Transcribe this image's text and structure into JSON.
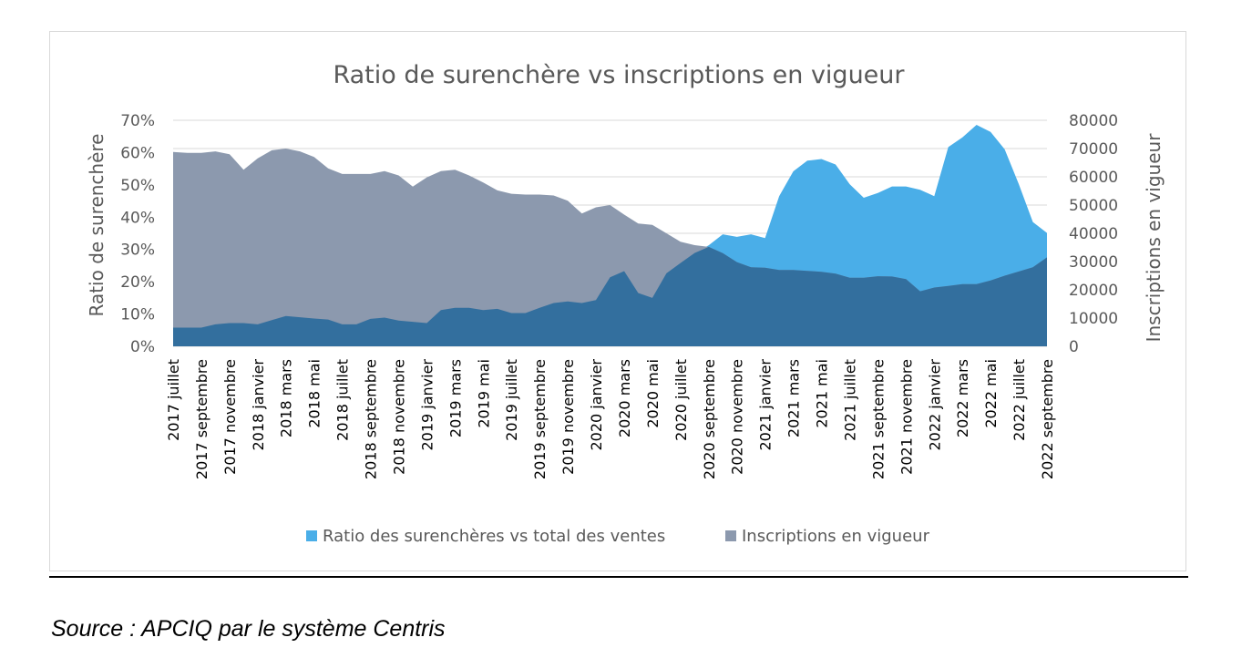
{
  "chart_data": {
    "type": "area",
    "title": "Ratio de surenchère vs inscriptions en vigueur",
    "ylabel_left": "Ratio de surenchère",
    "ylabel_right": "Inscriptions en vigueur",
    "y_left_ticks": [
      "0%",
      "10%",
      "20%",
      "30%",
      "40%",
      "50%",
      "60%",
      "70%"
    ],
    "y_right_ticks": [
      "0",
      "10000",
      "20000",
      "30000",
      "40000",
      "50000",
      "60000",
      "70000",
      "80000"
    ],
    "y_left_range": [
      0,
      70
    ],
    "y_right_range": [
      0,
      80000
    ],
    "x_tick_labels": [
      "2017 juillet",
      "2017 septembre",
      "2017 novembre",
      "2018 janvier",
      "2018 mars",
      "2018 mai",
      "2018 juillet",
      "2018 septembre",
      "2018 novembre",
      "2019 janvier",
      "2019 mars",
      "2019 mai",
      "2019 juillet",
      "2019 septembre",
      "2019 novembre",
      "2020 janvier",
      "2020 mars",
      "2020 mai",
      "2020 juillet",
      "2020 septembre",
      "2020 novembre",
      "2021 janvier",
      "2021 mars",
      "2021 mai",
      "2021 juillet",
      "2021 septembre",
      "2021 novembre",
      "2022 janvier",
      "2022 mars",
      "2022 mai",
      "2022 juillet",
      "2022 septembre"
    ],
    "months": [
      "2017-07",
      "2017-08",
      "2017-09",
      "2017-10",
      "2017-11",
      "2017-12",
      "2018-01",
      "2018-02",
      "2018-03",
      "2018-04",
      "2018-05",
      "2018-06",
      "2018-07",
      "2018-08",
      "2018-09",
      "2018-10",
      "2018-11",
      "2018-12",
      "2019-01",
      "2019-02",
      "2019-03",
      "2019-04",
      "2019-05",
      "2019-06",
      "2019-07",
      "2019-08",
      "2019-09",
      "2019-10",
      "2019-11",
      "2019-12",
      "2020-01",
      "2020-02",
      "2020-03",
      "2020-04",
      "2020-05",
      "2020-06",
      "2020-07",
      "2020-08",
      "2020-09",
      "2020-10",
      "2020-11",
      "2020-12",
      "2021-01",
      "2021-02",
      "2021-03",
      "2021-04",
      "2021-05",
      "2021-06",
      "2021-07",
      "2021-08",
      "2021-09",
      "2021-10",
      "2021-11",
      "2021-12",
      "2022-01",
      "2022-02",
      "2022-03",
      "2022-04",
      "2022-05",
      "2022-06",
      "2022-07",
      "2022-08",
      "2022-09"
    ],
    "series": [
      {
        "name": "Ratio des surenchères vs total des ventes",
        "axis": "left",
        "unit": "%",
        "color": "#4aaee8",
        "values": [
          5.8,
          5.8,
          5.8,
          6.8,
          7.2,
          7.2,
          6.8,
          8.1,
          9.4,
          9.0,
          8.6,
          8.3,
          6.8,
          6.8,
          8.5,
          8.9,
          8.0,
          7.6,
          7.2,
          11.2,
          11.9,
          11.9,
          11.2,
          11.6,
          10.3,
          10.3,
          11.9,
          13.4,
          13.9,
          13.4,
          14.3,
          21.4,
          23.3,
          16.5,
          15.0,
          22.6,
          25.8,
          28.9,
          31.3,
          34.7,
          33.9,
          34.7,
          33.5,
          46.5,
          54.2,
          57.5,
          58.0,
          56.3,
          50.2,
          46.0,
          47.5,
          49.5,
          49.5,
          48.5,
          46.5,
          61.7,
          64.7,
          68.6,
          66.4,
          61.0,
          50.2,
          38.5,
          35.1
        ]
      },
      {
        "name": "Inscriptions en vigueur",
        "axis": "right",
        "color": "#8c99ae",
        "values": [
          68800,
          68500,
          68500,
          69000,
          68000,
          62500,
          66500,
          69400,
          70000,
          69000,
          67000,
          63000,
          61000,
          61000,
          61000,
          62000,
          60500,
          56500,
          59800,
          62000,
          62500,
          60500,
          58000,
          55200,
          54000,
          53700,
          53700,
          53400,
          51500,
          47000,
          49200,
          50000,
          46600,
          43500,
          43000,
          40000,
          37000,
          35800,
          35200,
          33000,
          29800,
          28000,
          27800,
          27000,
          27000,
          26700,
          26400,
          25700,
          24300,
          24300,
          24800,
          24700,
          23800,
          19500,
          20800,
          21400,
          22000,
          22000,
          23300,
          25000,
          26500,
          28000,
          31500
        ]
      }
    ],
    "legend_position": "bottom",
    "gridlines": true
  },
  "source_text": "Source : APCIQ par le système Centris"
}
